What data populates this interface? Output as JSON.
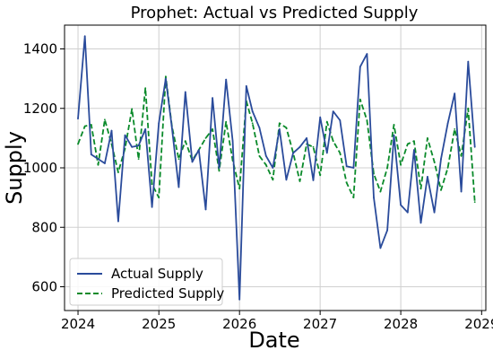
{
  "chart_data": {
    "type": "line",
    "title": "Prophet: Actual vs Predicted Supply",
    "xlabel": "Date",
    "ylabel": "Supply",
    "xlim": [
      "2023-11-01",
      "2029-01-20"
    ],
    "ylim": [
      520,
      1480
    ],
    "xticks": [
      "2024",
      "2025",
      "2026",
      "2027",
      "2028",
      "2029"
    ],
    "yticks": [
      600,
      800,
      1000,
      1200,
      1400
    ],
    "grid": true,
    "legend_position": "lower-left",
    "colors": {
      "actual": "#2a4b9b",
      "predicted": "#0a8a2a"
    },
    "x": [
      "2024-01",
      "2024-02",
      "2024-03",
      "2024-04",
      "2024-05",
      "2024-06",
      "2024-07",
      "2024-08",
      "2024-09",
      "2024-10",
      "2024-11",
      "2024-12",
      "2025-01",
      "2025-02",
      "2025-03",
      "2025-04",
      "2025-05",
      "2025-06",
      "2025-07",
      "2025-08",
      "2025-09",
      "2025-10",
      "2025-11",
      "2025-12",
      "2026-01",
      "2026-02",
      "2026-03",
      "2026-04",
      "2026-05",
      "2026-06",
      "2026-07",
      "2026-08",
      "2026-09",
      "2026-10",
      "2026-11",
      "2026-12",
      "2027-01",
      "2027-02",
      "2027-03",
      "2027-04",
      "2027-05",
      "2027-06",
      "2027-07",
      "2027-08",
      "2027-09",
      "2027-10",
      "2027-11",
      "2027-12",
      "2028-01",
      "2028-02",
      "2028-03",
      "2028-04",
      "2028-05",
      "2028-06",
      "2028-07",
      "2028-08",
      "2028-09",
      "2028-10",
      "2028-11",
      "2028-12"
    ],
    "series": [
      {
        "name": "Actual Supply",
        "style": "solid",
        "values": [
          1165,
          1443,
          1045,
          1030,
          1015,
          1125,
          820,
          1110,
          1070,
          1075,
          1130,
          868,
          1150,
          1300,
          1135,
          935,
          1255,
          1020,
          1060,
          860,
          1235,
          1000,
          1297,
          1090,
          557,
          1275,
          1190,
          1135,
          1040,
          1000,
          1130,
          960,
          1050,
          1070,
          1100,
          958,
          1170,
          1050,
          1190,
          1160,
          1005,
          1000,
          1340,
          1383,
          900,
          730,
          790,
          1110,
          875,
          850,
          1060,
          815,
          970,
          850,
          1030,
          1150,
          1250,
          920,
          1357,
          1070
        ]
      },
      {
        "name": "Predicted Supply",
        "style": "dashed",
        "values": [
          1080,
          1140,
          1145,
          1010,
          1162,
          1080,
          985,
          1065,
          1198,
          1030,
          1268,
          945,
          900,
          1307,
          1140,
          1030,
          1090,
          1025,
          1060,
          1100,
          1130,
          990,
          1155,
          1025,
          930,
          1225,
          1150,
          1040,
          1010,
          960,
          1150,
          1135,
          1050,
          955,
          1080,
          1070,
          975,
          1155,
          1090,
          1050,
          950,
          900,
          1230,
          1160,
          980,
          920,
          1000,
          1145,
          1010,
          1080,
          1090,
          930,
          1100,
          1020,
          925,
          1000,
          1130,
          1040,
          1200,
          885
        ]
      }
    ]
  }
}
